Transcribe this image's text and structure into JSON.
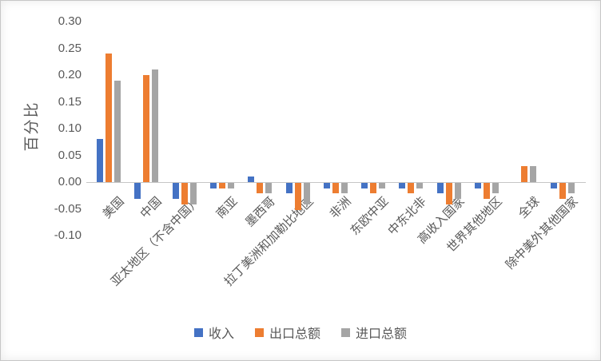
{
  "chart_data": {
    "type": "bar",
    "title": "",
    "ylabel": "百分比",
    "xlabel": "",
    "ylim": [
      -0.1,
      0.3
    ],
    "grid": false,
    "legend_position": "bottom",
    "y_tick_labels": [
      "0.30",
      "0.25",
      "0.20",
      "0.15",
      "0.10",
      "0.05",
      "0.00",
      "-0.05",
      "-0.10"
    ],
    "categories": [
      "美国",
      "中国",
      "亚太地区（不含中国）",
      "南亚",
      "墨西哥",
      "拉丁美洲和加勒比地区",
      "非洲",
      "东欧中亚",
      "中东北非",
      "高收入国家",
      "世界其他地区",
      "全球",
      "除中美外其他国家"
    ],
    "series": [
      {
        "name": "收入",
        "slug": "income",
        "color": "#4472C4",
        "values": [
          0.08,
          -0.03,
          -0.03,
          -0.01,
          0.01,
          -0.02,
          -0.01,
          -0.01,
          -0.01,
          -0.02,
          -0.01,
          0.0,
          -0.01
        ]
      },
      {
        "name": "出口总额",
        "slug": "total-exports",
        "color": "#ED7D31",
        "values": [
          0.24,
          0.2,
          -0.04,
          -0.01,
          -0.02,
          -0.05,
          -0.02,
          -0.02,
          -0.02,
          -0.04,
          -0.03,
          0.03,
          -0.03
        ]
      },
      {
        "name": "进口总额",
        "slug": "total-imports",
        "color": "#A5A5A5",
        "values": [
          0.19,
          0.21,
          -0.04,
          -0.01,
          -0.02,
          -0.04,
          -0.02,
          -0.01,
          -0.01,
          -0.03,
          -0.02,
          0.03,
          -0.02
        ]
      }
    ],
    "colors": {
      "text": "#595959",
      "axis_line": "#c6c6c6",
      "background": "#ffffff"
    }
  }
}
